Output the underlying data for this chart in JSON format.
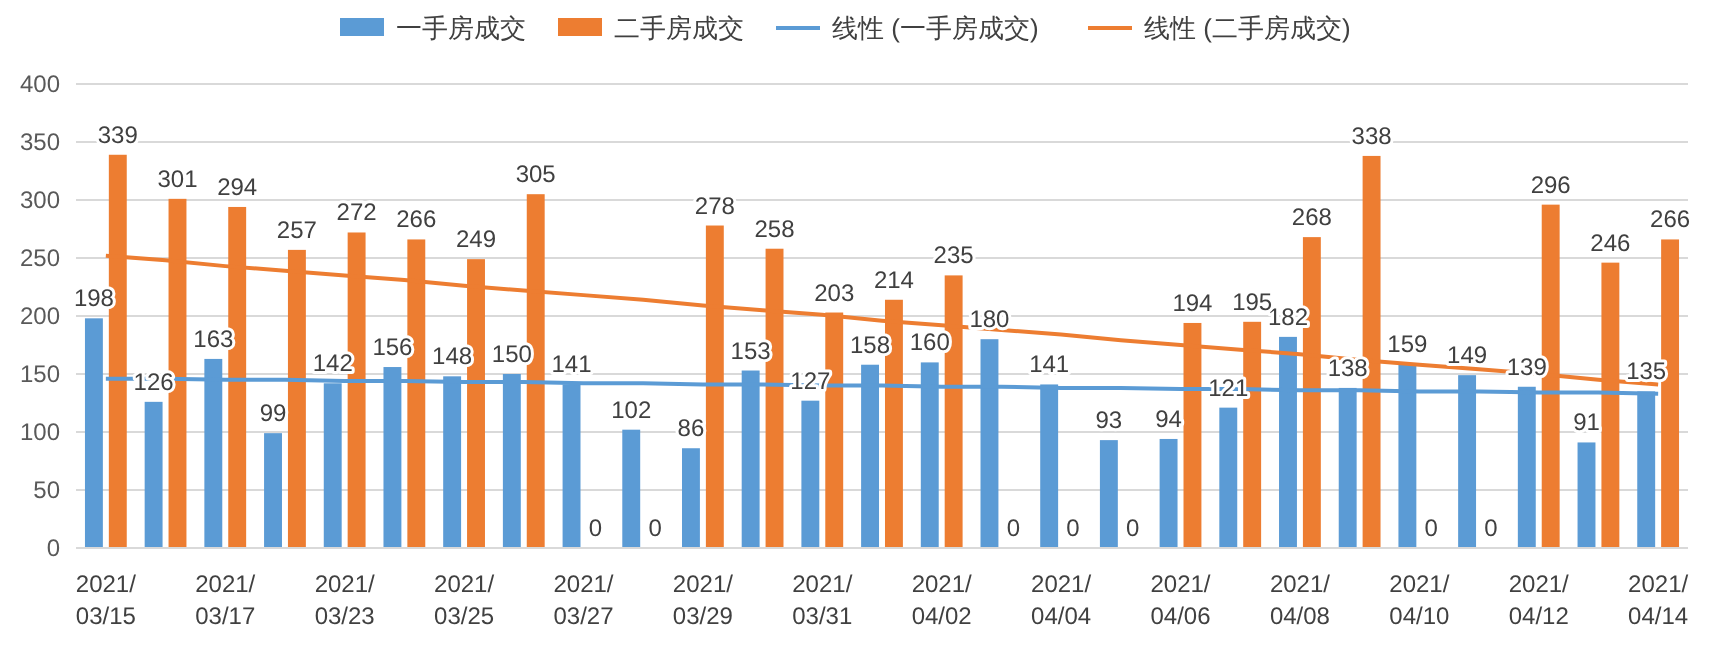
{
  "chart_data": {
    "type": "bar",
    "categories": [
      "2021/\n03/15",
      null,
      "2021/\n03/17",
      null,
      "2021/\n03/23",
      null,
      "2021/\n03/25",
      null,
      "2021/\n03/27",
      null,
      "2021/\n03/29",
      null,
      "2021/\n03/31",
      null,
      "2021/\n04/02",
      null,
      "2021/\n04/04",
      null,
      "2021/\n04/06",
      null,
      "2021/\n04/08",
      null,
      "2021/\n04/10",
      null,
      "2021/\n04/12",
      null,
      "2021/\n04/14"
    ],
    "series": [
      {
        "name": "一手房成交",
        "color": "#5b9bd5",
        "values": [
          198,
          126,
          163,
          99,
          142,
          156,
          148,
          150,
          141,
          102,
          86,
          153,
          127,
          158,
          160,
          180,
          141,
          93,
          94,
          121,
          182,
          138,
          159,
          149,
          139,
          91,
          135
        ]
      },
      {
        "name": "二手房成交",
        "color": "#ed7d31",
        "values": [
          339,
          301,
          294,
          257,
          272,
          266,
          249,
          305,
          0,
          0,
          278,
          258,
          203,
          214,
          235,
          0,
          0,
          0,
          194,
          195,
          268,
          338,
          0,
          0,
          296,
          246,
          266
        ]
      },
      {
        "name": "线性 (一手房成交)",
        "type": "line",
        "color": "#5b9bd5",
        "data_labels": false,
        "values": [
          146,
          146,
          145,
          145,
          144,
          144,
          143,
          143,
          142,
          142,
          141,
          141,
          140,
          140,
          139,
          139,
          138,
          138,
          137,
          137,
          136,
          136,
          135,
          135,
          134,
          134,
          133
        ]
      },
      {
        "name": "线性 (二手房成交)",
        "type": "line",
        "color": "#ed7d31",
        "data_labels": false,
        "values": [
          252,
          248,
          243,
          239,
          235,
          231,
          226,
          222,
          218,
          214,
          209,
          205,
          201,
          196,
          192,
          188,
          184,
          179,
          175,
          171,
          167,
          162,
          158,
          154,
          150,
          145,
          141
        ]
      }
    ],
    "ylim": [
      0,
      400
    ],
    "yticks": [
      0,
      50,
      100,
      150,
      200,
      250,
      300,
      350,
      400
    ],
    "grid": "y",
    "legend": "top",
    "data_labels": true
  }
}
